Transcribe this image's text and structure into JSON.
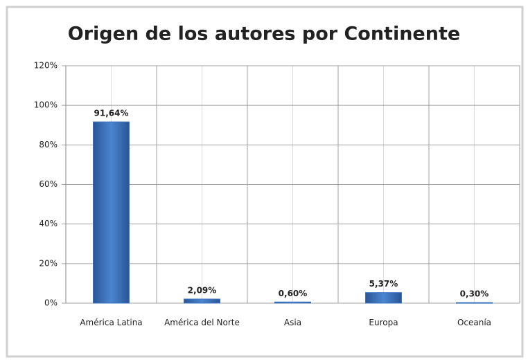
{
  "chart_data": {
    "type": "bar",
    "title": "Origen de los autores por Continente",
    "categories": [
      "América Latina",
      "América del Norte",
      "Asia",
      "Europa",
      "Oceanía"
    ],
    "values": [
      91.64,
      2.09,
      0.6,
      5.37,
      0.3
    ],
    "value_labels": [
      "91,64%",
      "2,09%",
      "0,60%",
      "5,37%",
      "0,30%"
    ],
    "color": "#3c74bd",
    "ylim": [
      0,
      120
    ],
    "yticks": [
      {
        "value": 0,
        "label": "0%"
      },
      {
        "value": 20,
        "label": "20%"
      },
      {
        "value": 40,
        "label": "40%"
      },
      {
        "value": 60,
        "label": "60%"
      },
      {
        "value": 80,
        "label": "80%"
      },
      {
        "value": 100,
        "label": "100%"
      },
      {
        "value": 120,
        "label": "120%"
      }
    ],
    "grid": true
  }
}
